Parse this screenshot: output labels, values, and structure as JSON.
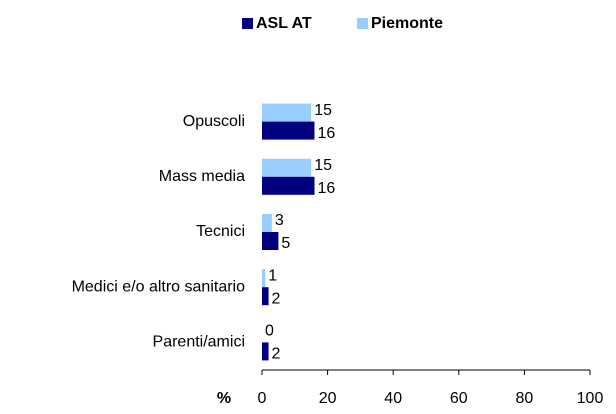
{
  "chart_data": {
    "type": "bar",
    "orientation": "horizontal",
    "categories": [
      "Opuscoli",
      "Mass media",
      "Tecnici",
      "Medici e/o altro sanitario",
      "Parenti/amici"
    ],
    "series": [
      {
        "name": "ASL AT",
        "color": "#000080",
        "values": [
          16,
          16,
          5,
          2,
          2
        ]
      },
      {
        "name": "Piemonte",
        "color": "#99ccff",
        "values": [
          15,
          15,
          3,
          1,
          0
        ]
      }
    ],
    "xlabel": "%",
    "xlim": [
      0,
      100
    ],
    "xticks": [
      0,
      20,
      40,
      60,
      80,
      100
    ],
    "legend": "top"
  }
}
